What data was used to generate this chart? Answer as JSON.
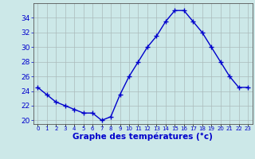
{
  "hours": [
    0,
    1,
    2,
    3,
    4,
    5,
    6,
    7,
    8,
    9,
    10,
    11,
    12,
    13,
    14,
    15,
    16,
    17,
    18,
    19,
    20,
    21,
    22,
    23
  ],
  "temperatures": [
    24.5,
    23.5,
    22.5,
    22.0,
    21.5,
    21.0,
    21.0,
    20.0,
    20.5,
    23.5,
    26.0,
    28.0,
    30.0,
    31.5,
    33.5,
    35.0,
    35.0,
    33.5,
    32.0,
    30.0,
    28.0,
    26.0,
    24.5,
    24.5
  ],
  "line_color": "#0000cc",
  "marker": "+",
  "marker_size": 4,
  "marker_lw": 1.0,
  "bg_color": "#cce8e8",
  "grid_color": "#aabbbb",
  "axis_color": "#333333",
  "tick_color": "#0000cc",
  "xlabel": "Graphe des températures (°c)",
  "xlabel_fontsize": 7.5,
  "ylim": [
    19.5,
    36.0
  ],
  "yticks": [
    20,
    22,
    24,
    26,
    28,
    30,
    32,
    34
  ],
  "ytick_fontsize": 6.5,
  "xtick_labels": [
    "0",
    "1",
    "2",
    "3",
    "4",
    "5",
    "6",
    "7",
    "8",
    "9",
    "10",
    "11",
    "12",
    "13",
    "14",
    "15",
    "16",
    "17",
    "18",
    "19",
    "20",
    "21",
    "22",
    "23"
  ],
  "xtick_fontsize": 5.0,
  "line_width": 1.0
}
